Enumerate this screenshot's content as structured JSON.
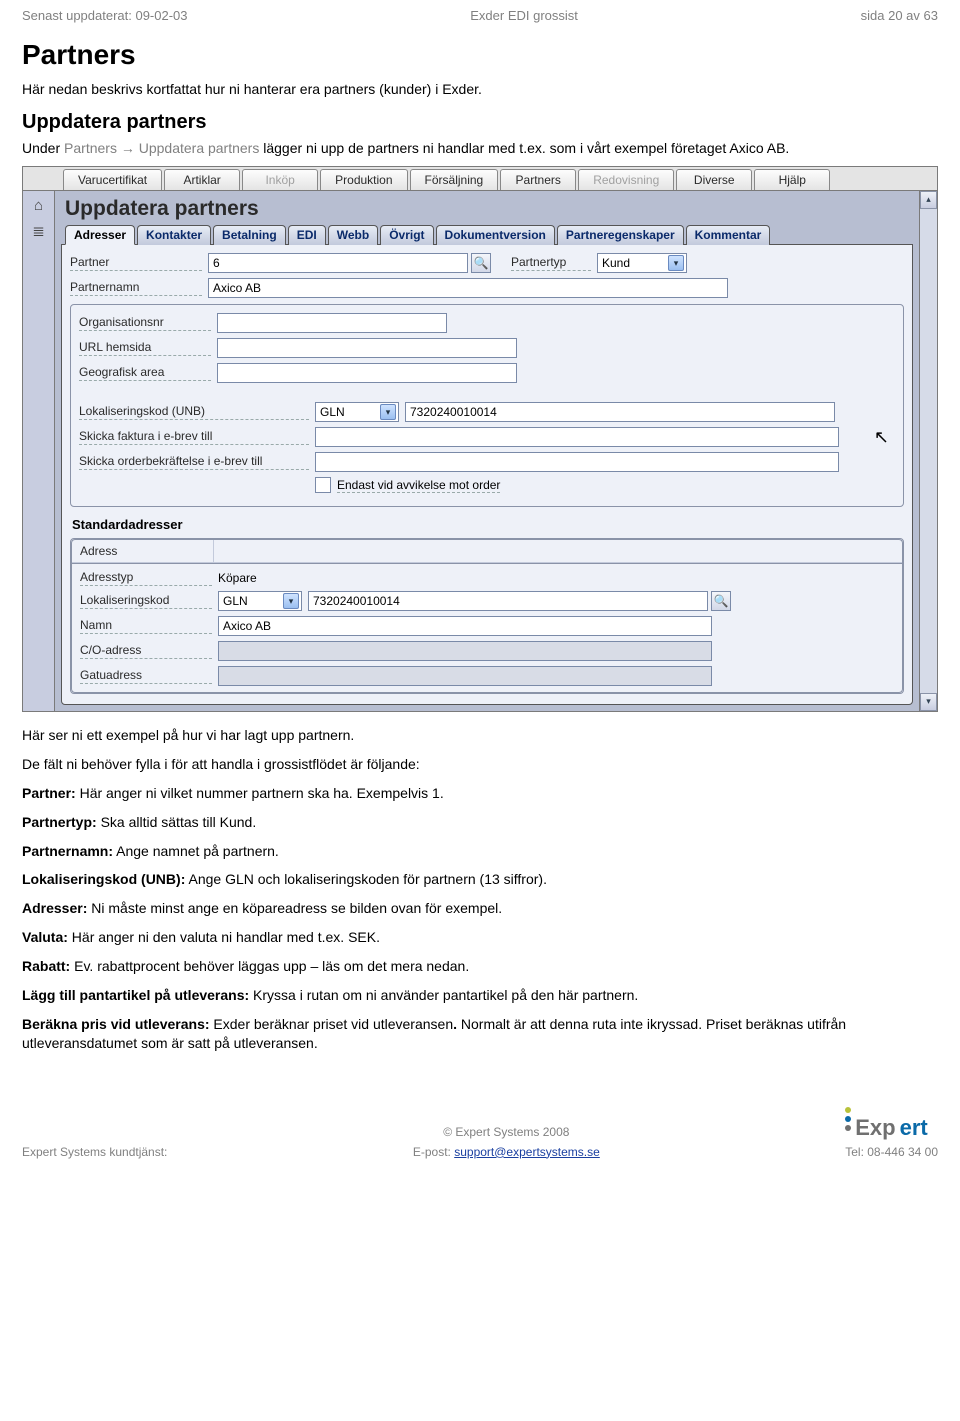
{
  "doc_header": {
    "left": "Senast uppdaterat: 09-02-03",
    "center": "Exder EDI grossist",
    "right": "sida 20 av 63"
  },
  "page": {
    "h1": "Partners",
    "intro": "Här nedan beskrivs kortfattat hur ni hanterar era partners (kunder) i Exder.",
    "h2": "Uppdatera partners",
    "sub_pre": "Under ",
    "sub_grey": "Partners → Uppdatera partners",
    "sub_post": " lägger ni upp de partners ni handlar med t.ex. som i vårt exempel företaget Axico AB."
  },
  "menu": {
    "items": [
      "Varucertifikat",
      "Artiklar",
      "Inköp",
      "Produktion",
      "Försäljning",
      "Partners",
      "Redovisning",
      "Diverse",
      "Hjälp"
    ],
    "disabled": [
      "Inköp",
      "Redovisning"
    ]
  },
  "panel_title": "Uppdatera partners",
  "inner_tabs": [
    "Adresser",
    "Kontakter",
    "Betalning",
    "EDI",
    "Webb",
    "Övrigt",
    "Dokumentversion",
    "Partneregenskaper",
    "Kommentar"
  ],
  "active_tab": "Adresser",
  "form": {
    "partner_label": "Partner",
    "partner_value": "6",
    "partnertyp_label": "Partnertyp",
    "partnertyp_value": "Kund",
    "partnernamn_label": "Partnernamn",
    "partnernamn_value": "Axico AB",
    "org_label": "Organisationsnr",
    "org_value": "",
    "url_label": "URL hemsida",
    "url_value": "",
    "geo_label": "Geografisk area",
    "geo_value": "",
    "unb_label": "Lokaliseringskod (UNB)",
    "unb_type": "GLN",
    "unb_value": "7320240010014",
    "faktura_label": "Skicka faktura i e-brev till",
    "faktura_value": "",
    "orderb_label": "Skicka orderbekräftelse i e-brev till",
    "orderb_value": "",
    "endast_label": "Endast vid avvikelse mot order"
  },
  "std_addr": {
    "section_label": "Standardadresser",
    "head": "Adress",
    "adresstyp_label": "Adresstyp",
    "adresstyp_value": "Köpare",
    "lokal_label": "Lokaliseringskod",
    "lokal_type": "GLN",
    "lokal_value": "7320240010014",
    "namn_label": "Namn",
    "namn_value": "Axico AB",
    "co_label": "C/O-adress",
    "co_value": "",
    "gatu_label": "Gatuadress",
    "gatu_value": ""
  },
  "body_paras": [
    "Här ser ni ett exempel på hur vi har lagt upp partnern.",
    "De fält ni behöver fylla i för att handla i grossistflödet är följande:",
    "<b>Partner:</b> Här anger ni vilket nummer partnern ska ha. Exempelvis 1.",
    "<b>Partnertyp:</b> Ska alltid sättas till Kund.",
    "<b>Partnernamn:</b> Ange namnet på partnern.",
    "<b>Lokaliseringskod (UNB):</b> Ange GLN och lokaliseringskoden för partnern (13 siffror).",
    "<b>Adresser:</b> Ni måste minst ange en köpareadress se bilden ovan för exempel.",
    "<b>Valuta:</b> Här anger ni den valuta ni handlar med t.ex. SEK.",
    "<b>Rabatt:</b> Ev. rabattprocent behöver läggas upp – läs om det mera nedan.",
    "<b>Lägg till pantartikel på utleverans:</b> Kryssa i rutan om ni använder pantartikel på den här partnern.",
    "<b>Beräkna pris vid utleverans:</b> Exder beräknar priset vid utleveransen<b>.</b> Normalt är att denna ruta inte ikryssad. Priset beräknas utifrån utleveransdatumet som är satt på utleveransen."
  ],
  "footer": {
    "copyright": "© Expert Systems 2008",
    "left": "Expert Systems kundtjänst:",
    "center_pre": "E-post: ",
    "center_link": "support@expertsystems.se",
    "right": "Tel: 08-446 34 00",
    "logo_grey": "Exp",
    "logo_blue": "ert"
  },
  "colors": {
    "grey_text": "#808080",
    "app_bg": "#aab2c3",
    "panel_bg": "#eef1f8",
    "link": "#1a3fa0"
  }
}
